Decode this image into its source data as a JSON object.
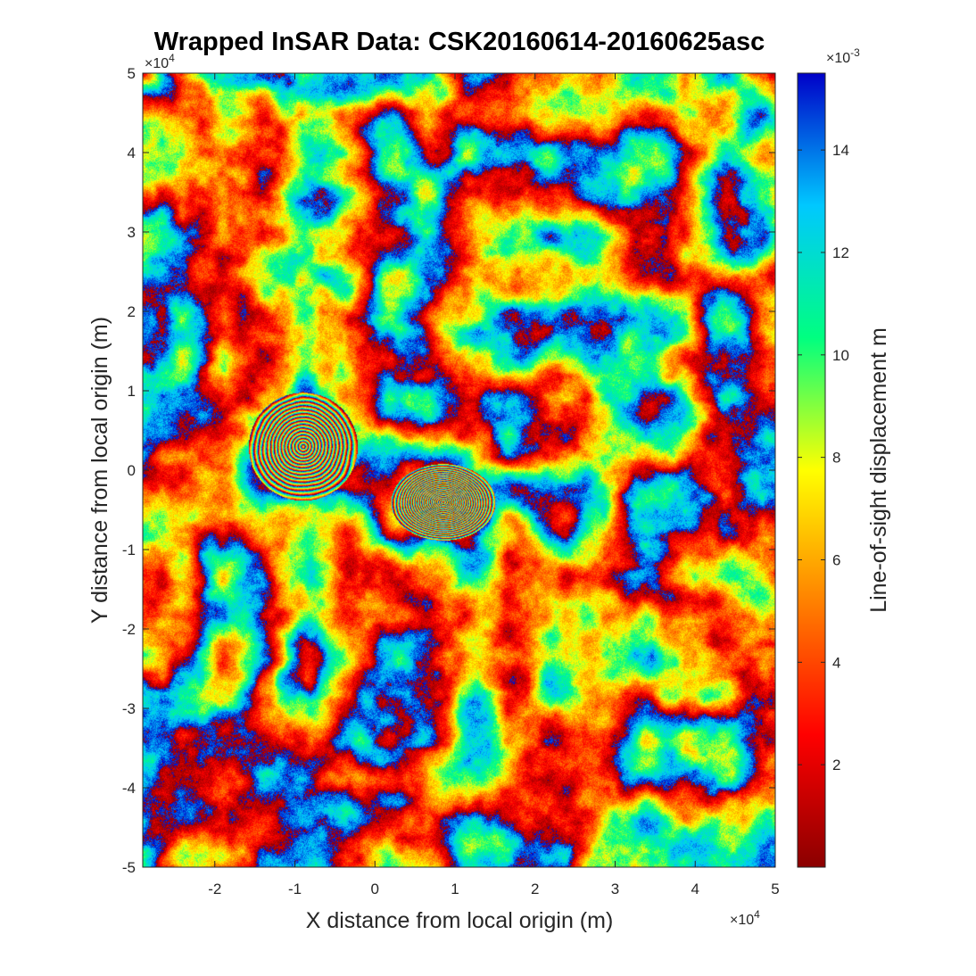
{
  "chart_data": {
    "type": "heatmap",
    "title": "Wrapped InSAR Data: CSK20160614-20160625asc",
    "xlabel": "X distance from local origin (m)",
    "ylabel": "Y distance from local origin (m)",
    "x_exponent_label": "×10",
    "x_exponent_power": "4",
    "y_exponent_label": "×10",
    "y_exponent_power": "4",
    "xlim": [
      -29000,
      50000
    ],
    "ylim": [
      -50000,
      50000
    ],
    "x_ticks": [
      -20000,
      -10000,
      0,
      10000,
      20000,
      30000,
      40000,
      50000
    ],
    "x_tick_labels": [
      "-2",
      "-1",
      "0",
      "1",
      "2",
      "3",
      "4",
      "5"
    ],
    "y_ticks": [
      -50000,
      -40000,
      -30000,
      -20000,
      -10000,
      0,
      10000,
      20000,
      30000,
      40000,
      50000
    ],
    "y_tick_labels": [
      "-5",
      "-4",
      "-3",
      "-2",
      "-1",
      "0",
      "1",
      "2",
      "3",
      "4",
      "5"
    ],
    "colorbar": {
      "label": "Line-of-sight displacement m",
      "exponent_label": "×10",
      "exponent_power": "-3",
      "clim": [
        0.0,
        0.0155
      ],
      "ticks": [
        0.002,
        0.004,
        0.006,
        0.008,
        0.01,
        0.012,
        0.014
      ],
      "tick_labels": [
        "2",
        "4",
        "6",
        "8",
        "10",
        "12",
        "14"
      ],
      "colormap": [
        "#8b0000",
        "#ff0000",
        "#ff8000",
        "#ffff00",
        "#00ff80",
        "#00c8ff",
        "#0000c8"
      ]
    },
    "deformation_sources": [
      {
        "x": -9000,
        "y": 3000,
        "fringes": 15
      },
      {
        "x": 8500,
        "y": -4000,
        "fringes": 22
      }
    ],
    "grid": false
  }
}
